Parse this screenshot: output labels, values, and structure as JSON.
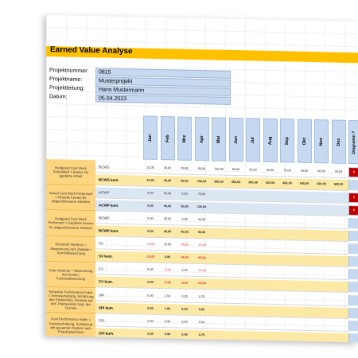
{
  "title": "Earned Value Analyse",
  "info": [
    {
      "label": "Projektnummer:",
      "value": "0815"
    },
    {
      "label": "Projektname:",
      "value": "Musterprojekt"
    },
    {
      "label": "Projektleitung:",
      "value": "Hans Mustermann"
    },
    {
      "label": "Datum:",
      "value": "05.04.2023"
    }
  ],
  "months": [
    "Jan",
    "Feb",
    "Mrz",
    "Apr",
    "Mai",
    "Jun",
    "Jul",
    "Aug",
    "Sep",
    "Okt",
    "Nov",
    "Dez"
  ],
  "diagram_header": "Diagramm ?",
  "sections": [
    {
      "title": "Budgeted Cost Work Scheduled = Kosten für geplante Arbeit"
    },
    {
      "title": "Actual Cost Work Performed = Aktuelle Kosten für abgeschlossene Arbeiten"
    },
    {
      "title": "Budgeted Cost Work Performed = Geplante Kosten für abgeschlossene Arbeiten"
    },
    {
      "title": "Schedule Variance = Abweichung vom Zeitplan / Terminabweichung"
    },
    {
      "title": "Cost Variance = Abweichung der Kosten, Kostenabweichung"
    },
    {
      "title": "Schedule Performance Index = Terminerhaltung, Schätzung des Endtermins, Hinweis auf evtl. Planrevision bzgl. der Termine"
    },
    {
      "title": "Cost Performance Index = Kostenerhaltung, Schätzung der gesamten Kosten nach Projektabschluss"
    }
  ],
  "rows": [
    {
      "label": "BCWS",
      "values": [
        "15,00",
        "30,00",
        "45,00",
        "60,00",
        "130,00",
        "80,00",
        "30,00",
        "30,00",
        "70,00",
        "50,00",
        "90,00",
        "30,00"
      ]
    },
    {
      "label": "BCWS kum.",
      "values": [
        "15,00",
        "45,00",
        "90,00",
        "150,00",
        "280,00",
        "360,00",
        "390,00",
        "420,00",
        "490,00",
        "540,00",
        "630,00",
        "660,00"
      ]
    },
    {
      "label": "ACWP",
      "values": [
        "0,00",
        "50,00",
        "0,00",
        "70,00",
        "",
        "",
        "",
        "",
        "",
        "",
        "",
        ""
      ]
    },
    {
      "label": "ACWP kum.",
      "values": [
        "0,00",
        "50,00",
        "50,00",
        "120,00",
        "",
        "",
        "",
        "",
        "",
        "",
        "",
        ""
      ]
    },
    {
      "label": "BCWP",
      "values": [
        "0,00",
        "45,00",
        "0,00",
        "45,00",
        "",
        "",
        "",
        "",
        "",
        "",
        "",
        ""
      ]
    },
    {
      "label": "BCWP kum.",
      "values": [
        "0,00",
        "45,00",
        "45,00",
        "90,00",
        "",
        "",
        "",
        "",
        "",
        "",
        "",
        ""
      ]
    },
    {
      "label": "SV",
      "values": [
        "-15,00",
        "15,00",
        "-45,00",
        "-15,00",
        "",
        "",
        "",
        "",
        "",
        "",
        "",
        ""
      ]
    },
    {
      "label": "SV kum.",
      "values": [
        "-15,00",
        "0,00",
        "-45,00",
        "-60,00",
        "",
        "",
        "",
        "",
        "",
        "",
        "",
        ""
      ]
    },
    {
      "label": "CV",
      "values": [
        "0,00",
        "-5,00",
        "0,00",
        "-25,00",
        "",
        "",
        "",
        "",
        "",
        "",
        "",
        ""
      ]
    },
    {
      "label": "CV kum.",
      "values": [
        "0,00",
        "-5,00",
        "-5,00",
        "-30,00",
        "",
        "",
        "",
        "",
        "",
        "",
        "",
        ""
      ]
    },
    {
      "label": "SPI",
      "values": [
        "0,00",
        "1,50",
        "0,00",
        "0,75",
        "",
        "",
        "",
        "",
        "",
        "",
        "",
        ""
      ]
    },
    {
      "label": "SPI kum.",
      "values": [
        "0,00",
        "1,00",
        "0,50",
        "0,60",
        "",
        "",
        "",
        "",
        "",
        "",
        "",
        ""
      ]
    },
    {
      "label": "CPI",
      "values": [
        "0,00",
        "0,90",
        "0,00",
        "0,64",
        "",
        "",
        "",
        "",
        "",
        "",
        "",
        ""
      ]
    },
    {
      "label": "CPI kum.",
      "values": [
        "0,00",
        "0,90",
        "0,90",
        "0,75",
        "",
        "",
        "",
        "",
        "",
        "",
        "",
        ""
      ]
    }
  ],
  "diagram_marks": [
    "x",
    "x",
    "x"
  ]
}
